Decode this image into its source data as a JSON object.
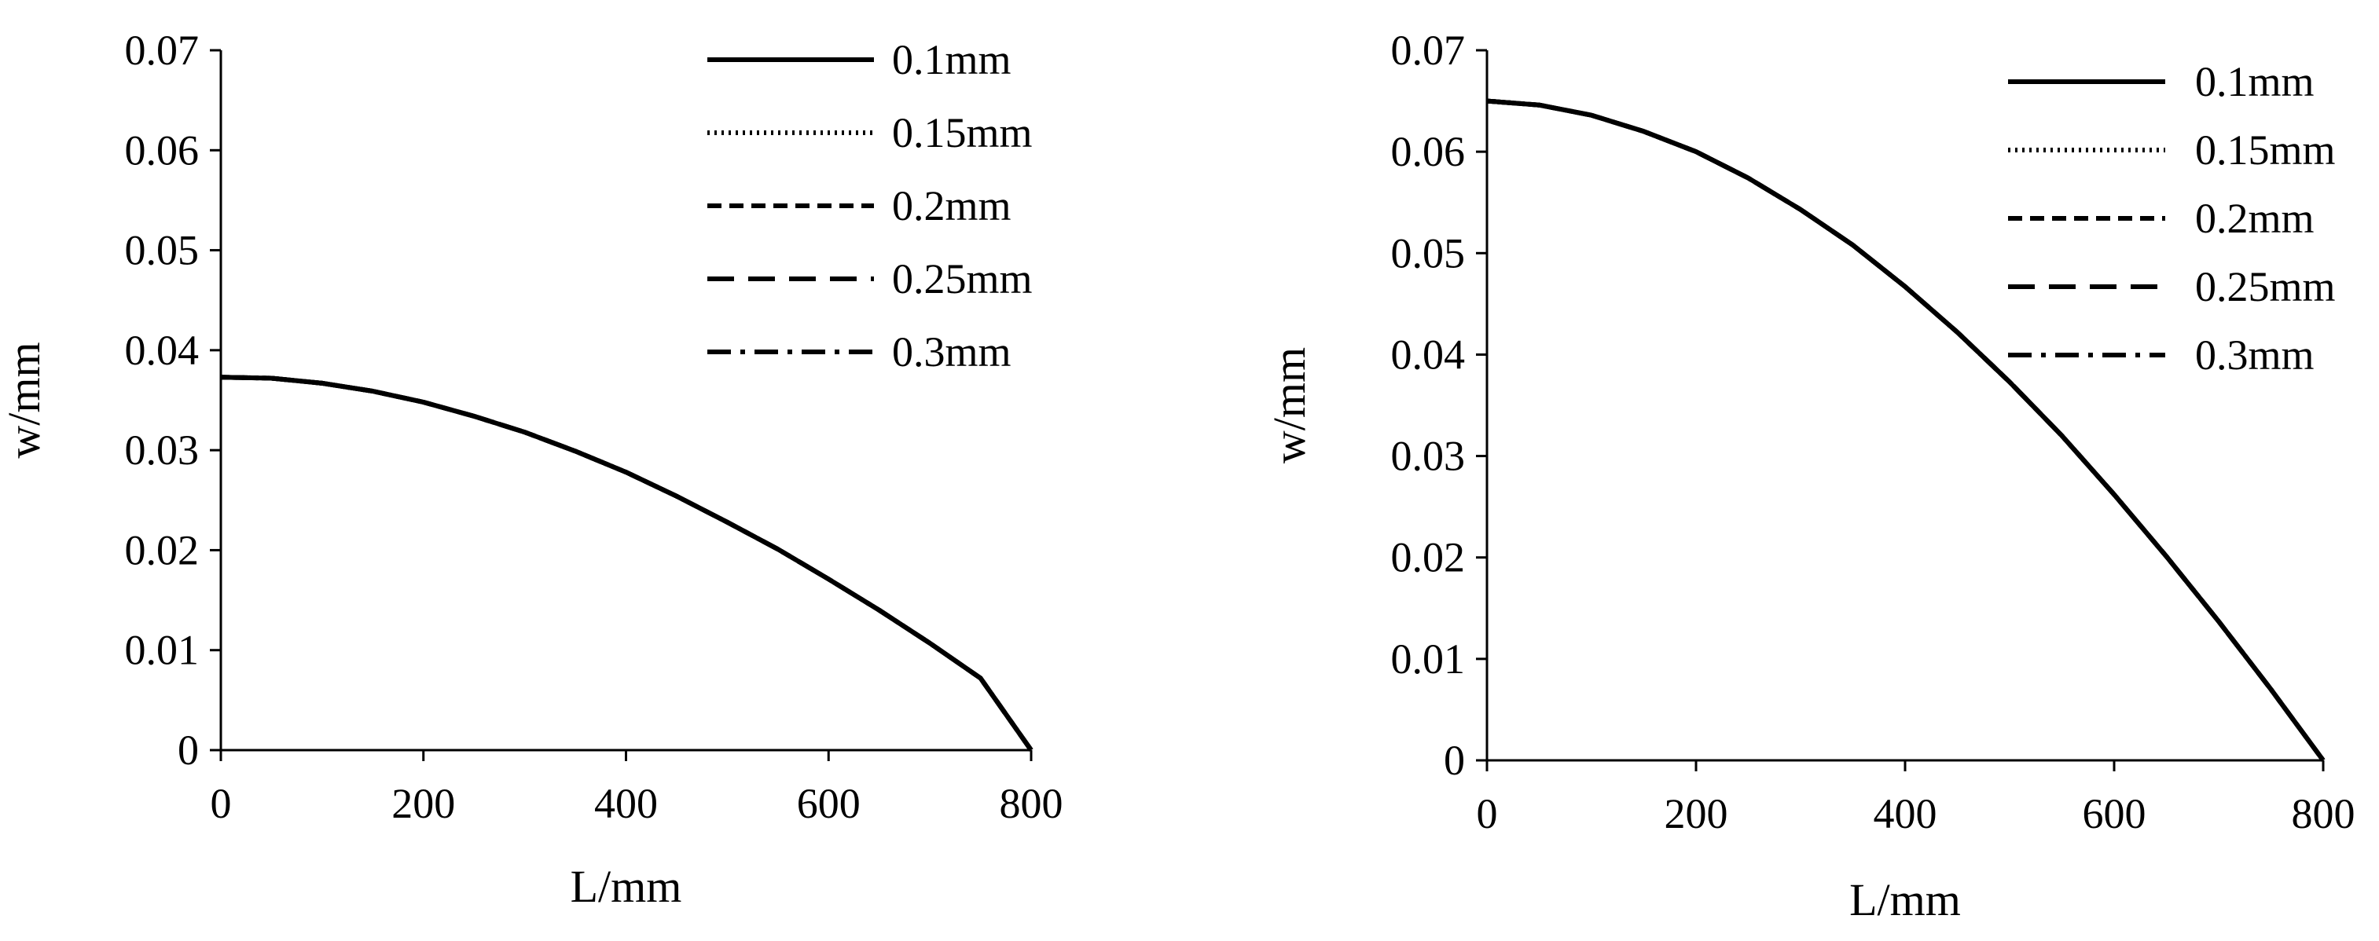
{
  "chart_data": [
    {
      "type": "line",
      "xlabel": "L/mm",
      "ylabel": "w/mm",
      "xlim": [
        0,
        800
      ],
      "ylim": [
        0,
        0.07
      ],
      "x_ticks": [
        "0",
        "200",
        "400",
        "600",
        "800"
      ],
      "y_ticks": [
        "0",
        "0.01",
        "0.02",
        "0.03",
        "0.04",
        "0.05",
        "0.06",
        "0.07"
      ],
      "grid": false,
      "legend_position": "top-right",
      "x": [
        0,
        50,
        100,
        150,
        200,
        250,
        300,
        350,
        400,
        450,
        500,
        550,
        600,
        650,
        700,
        750,
        800
      ],
      "series": [
        {
          "name": "0.1mm",
          "dash": "solid",
          "values": [
            0.0373,
            0.0372,
            0.0367,
            0.0359,
            0.0348,
            0.0334,
            0.0318,
            0.0299,
            0.0278,
            0.0254,
            0.0228,
            0.0201,
            0.0171,
            0.014,
            0.0107,
            0.0072,
            0.0
          ]
        },
        {
          "name": "0.15mm",
          "dash": "dotted",
          "values": [
            0.0373,
            0.0372,
            0.0367,
            0.0359,
            0.0348,
            0.0334,
            0.0318,
            0.0299,
            0.0278,
            0.0254,
            0.0228,
            0.0201,
            0.0171,
            0.014,
            0.0107,
            0.0072,
            0.0
          ]
        },
        {
          "name": "0.2mm",
          "dash": "dashed",
          "values": [
            0.0373,
            0.0372,
            0.0367,
            0.0359,
            0.0348,
            0.0334,
            0.0318,
            0.0299,
            0.0278,
            0.0254,
            0.0228,
            0.0201,
            0.0171,
            0.014,
            0.0107,
            0.0072,
            0.0
          ]
        },
        {
          "name": "0.25mm",
          "dash": "longdash",
          "values": [
            0.0373,
            0.0372,
            0.0367,
            0.0359,
            0.0348,
            0.0334,
            0.0318,
            0.0299,
            0.0278,
            0.0254,
            0.0228,
            0.0201,
            0.0171,
            0.014,
            0.0107,
            0.0072,
            0.0
          ]
        },
        {
          "name": "0.3mm",
          "dash": "dashdot",
          "values": [
            0.0373,
            0.0372,
            0.0367,
            0.0359,
            0.0348,
            0.0334,
            0.0318,
            0.0299,
            0.0278,
            0.0254,
            0.0228,
            0.0201,
            0.0171,
            0.014,
            0.0107,
            0.0072,
            0.0
          ]
        }
      ]
    },
    {
      "type": "line",
      "xlabel": "L/mm",
      "ylabel": "w/mm",
      "xlim": [
        0,
        800
      ],
      "ylim": [
        0,
        0.07
      ],
      "x_ticks": [
        "0",
        "200",
        "400",
        "600",
        "800"
      ],
      "y_ticks": [
        "0",
        "0.01",
        "0.02",
        "0.03",
        "0.04",
        "0.05",
        "0.06",
        "0.07"
      ],
      "grid": false,
      "legend_position": "top-right",
      "x": [
        0,
        50,
        100,
        150,
        200,
        250,
        300,
        350,
        400,
        450,
        500,
        550,
        600,
        650,
        700,
        750,
        800
      ],
      "series": [
        {
          "name": "0.1mm",
          "dash": "solid",
          "values": [
            0.065,
            0.0646,
            0.0636,
            0.062,
            0.06,
            0.0574,
            0.0543,
            0.0508,
            0.0467,
            0.0422,
            0.0373,
            0.032,
            0.0262,
            0.0201,
            0.0137,
            0.007,
            0.0
          ]
        },
        {
          "name": "0.15mm",
          "dash": "dotted",
          "values": [
            0.065,
            0.0646,
            0.0636,
            0.062,
            0.06,
            0.0574,
            0.0543,
            0.0508,
            0.0467,
            0.0422,
            0.0373,
            0.032,
            0.0262,
            0.0201,
            0.0137,
            0.007,
            0.0
          ]
        },
        {
          "name": "0.2mm",
          "dash": "dashed",
          "values": [
            0.065,
            0.0646,
            0.0636,
            0.062,
            0.06,
            0.0574,
            0.0543,
            0.0508,
            0.0467,
            0.0422,
            0.0373,
            0.032,
            0.0262,
            0.0201,
            0.0137,
            0.007,
            0.0
          ]
        },
        {
          "name": "0.25mm",
          "dash": "longdash",
          "values": [
            0.065,
            0.0646,
            0.0636,
            0.062,
            0.06,
            0.0574,
            0.0543,
            0.0508,
            0.0467,
            0.0422,
            0.0373,
            0.032,
            0.0262,
            0.0201,
            0.0137,
            0.007,
            0.0
          ]
        },
        {
          "name": "0.3mm",
          "dash": "dashdot",
          "values": [
            0.065,
            0.0646,
            0.0636,
            0.062,
            0.06,
            0.0574,
            0.0543,
            0.0508,
            0.0467,
            0.0422,
            0.0373,
            0.032,
            0.0262,
            0.0201,
            0.0137,
            0.007,
            0.0
          ]
        }
      ]
    }
  ]
}
